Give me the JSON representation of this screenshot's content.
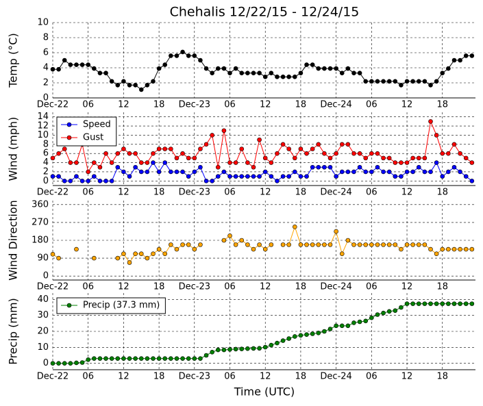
{
  "chart_data": [
    {
      "type": "line",
      "title": "Chehalis 12/22/15 - 12/24/15",
      "ylabel": "Temp (°C)",
      "x": [
        0,
        1,
        2,
        3,
        4,
        5,
        6,
        7,
        8,
        9,
        10,
        11,
        12,
        13,
        14,
        15,
        16,
        17,
        18,
        19,
        20,
        21,
        22,
        23,
        24,
        25,
        26,
        27,
        28,
        29,
        30,
        31,
        32,
        33,
        34,
        35,
        36,
        37,
        38,
        39,
        40,
        41,
        42,
        43,
        44,
        45,
        46,
        47,
        48,
        49,
        50,
        51,
        52,
        53,
        54,
        55,
        56,
        57,
        58,
        59,
        60,
        61,
        62,
        63,
        64,
        65,
        66,
        67,
        68,
        69,
        70,
        71
      ],
      "xlim": [
        0,
        71.6
      ],
      "xticks": [
        {
          "value": 0,
          "label": "Dec-22"
        },
        {
          "value": 6,
          "label": "06"
        },
        {
          "value": 12,
          "label": "12"
        },
        {
          "value": 18,
          "label": "18"
        },
        {
          "value": 24,
          "label": "Dec-23"
        },
        {
          "value": 30,
          "label": "06"
        },
        {
          "value": 36,
          "label": "12"
        },
        {
          "value": 42,
          "label": "18"
        },
        {
          "value": 48,
          "label": "Dec-24"
        },
        {
          "value": 54,
          "label": "06"
        },
        {
          "value": 60,
          "label": "12"
        },
        {
          "value": 66,
          "label": "18"
        }
      ],
      "ylim": [
        0,
        10
      ],
      "yticks": [
        0,
        2,
        4,
        6,
        8,
        10
      ],
      "grid": true,
      "series": [
        {
          "color": "#000000",
          "values": [
            3.8,
            3.8,
            5,
            4.4,
            4.4,
            4.4,
            4.4,
            3.9,
            3.3,
            3.3,
            2.2,
            1.7,
            2.2,
            1.7,
            1.7,
            1.1,
            1.7,
            2.2,
            3.9,
            4.4,
            5.6,
            5.6,
            6.1,
            5.6,
            5.6,
            5,
            3.9,
            3.3,
            3.9,
            3.9,
            3.3,
            3.9,
            3.3,
            3.3,
            3.3,
            3.3,
            2.8,
            3.3,
            2.8,
            2.8,
            2.8,
            2.8,
            3.3,
            4.4,
            4.4,
            3.9,
            3.9,
            3.9,
            3.9,
            3.3,
            3.9,
            3.3,
            3.3,
            2.2,
            2.2,
            2.2,
            2.2,
            2.2,
            2.2,
            1.7,
            2.2,
            2.2,
            2.2,
            2.2,
            1.7,
            2.2,
            3.3,
            3.9,
            5,
            5,
            5.6,
            5.6
          ]
        }
      ]
    },
    {
      "type": "line",
      "ylabel": "Wind (mph)",
      "x": [
        0,
        1,
        2,
        3,
        4,
        5,
        6,
        7,
        8,
        9,
        10,
        11,
        12,
        13,
        14,
        15,
        16,
        17,
        18,
        19,
        20,
        21,
        22,
        23,
        24,
        25,
        26,
        27,
        28,
        29,
        30,
        31,
        32,
        33,
        34,
        35,
        36,
        37,
        38,
        39,
        40,
        41,
        42,
        43,
        44,
        45,
        46,
        47,
        48,
        49,
        50,
        51,
        52,
        53,
        54,
        55,
        56,
        57,
        58,
        59,
        60,
        61,
        62,
        63,
        64,
        65,
        66,
        67,
        68,
        69,
        70,
        71
      ],
      "xlim": [
        0,
        71.6
      ],
      "xticks": [
        {
          "value": 0,
          "label": "Dec-22"
        },
        {
          "value": 6,
          "label": "06"
        },
        {
          "value": 12,
          "label": "12"
        },
        {
          "value": 18,
          "label": "18"
        },
        {
          "value": 24,
          "label": "Dec-23"
        },
        {
          "value": 30,
          "label": "06"
        },
        {
          "value": 36,
          "label": "12"
        },
        {
          "value": 42,
          "label": "18"
        },
        {
          "value": 48,
          "label": "Dec-24"
        },
        {
          "value": 54,
          "label": "06"
        },
        {
          "value": 60,
          "label": "12"
        },
        {
          "value": 66,
          "label": "18"
        }
      ],
      "ylim": [
        -1,
        15
      ],
      "yticks": [
        0,
        2,
        4,
        6,
        8,
        10,
        12,
        14
      ],
      "grid": true,
      "legend": "upper left",
      "series": [
        {
          "name": "Speed",
          "color": "#0000ff",
          "values": [
            1,
            1,
            0,
            0,
            1,
            0,
            0,
            1,
            0,
            0,
            0,
            3,
            2,
            1,
            3,
            2,
            2,
            4,
            2,
            4,
            2,
            2,
            2,
            1,
            2,
            3,
            0,
            0,
            1,
            2,
            1,
            1,
            1,
            1,
            1,
            1,
            2,
            1,
            0,
            1,
            1,
            2,
            1,
            1,
            3,
            3,
            3,
            3,
            1,
            2,
            2,
            2,
            3,
            2,
            2,
            3,
            2,
            2,
            1,
            1,
            2,
            2,
            3,
            2,
            2,
            4,
            1,
            2,
            3,
            2,
            1,
            0
          ]
        },
        {
          "name": "Gust",
          "color": "#ff0000",
          "values": [
            5,
            6,
            7,
            4,
            4,
            8,
            2,
            4,
            3,
            6,
            4,
            6,
            7,
            6,
            6,
            4,
            4,
            6,
            7,
            7,
            7,
            5,
            6,
            5,
            5,
            7,
            8,
            10,
            3,
            11,
            4,
            4,
            7,
            4,
            3,
            9,
            5,
            4,
            6,
            8,
            7,
            5,
            7,
            6,
            7,
            8,
            6,
            5,
            6,
            8,
            8,
            6,
            6,
            5,
            6,
            6,
            5,
            5,
            4,
            4,
            4,
            5,
            5,
            5,
            13,
            10,
            6,
            6,
            8,
            6,
            5,
            4
          ]
        }
      ]
    },
    {
      "type": "line",
      "ylabel": "Wind Direction",
      "x": [
        0,
        1,
        2,
        3,
        4,
        5,
        6,
        7,
        8,
        9,
        10,
        11,
        12,
        13,
        14,
        15,
        16,
        17,
        18,
        19,
        20,
        21,
        22,
        23,
        24,
        25,
        26,
        27,
        28,
        29,
        30,
        31,
        32,
        33,
        34,
        35,
        36,
        37,
        38,
        39,
        40,
        41,
        42,
        43,
        44,
        45,
        46,
        47,
        48,
        49,
        50,
        51,
        52,
        53,
        54,
        55,
        56,
        57,
        58,
        59,
        60,
        61,
        62,
        63,
        64,
        65,
        66,
        67,
        68,
        69,
        70,
        71
      ],
      "xlim": [
        0,
        71.6
      ],
      "xticks": [
        {
          "value": 0,
          "label": "Dec-22"
        },
        {
          "value": 6,
          "label": "06"
        },
        {
          "value": 12,
          "label": "12"
        },
        {
          "value": 18,
          "label": "18"
        },
        {
          "value": 24,
          "label": "Dec-23"
        },
        {
          "value": 30,
          "label": "06"
        },
        {
          "value": 36,
          "label": "12"
        },
        {
          "value": 42,
          "label": "18"
        },
        {
          "value": 48,
          "label": "Dec-24"
        },
        {
          "value": 54,
          "label": "06"
        },
        {
          "value": 60,
          "label": "12"
        },
        {
          "value": 66,
          "label": "18"
        }
      ],
      "ylim": [
        -20,
        380
      ],
      "yticks": [
        0,
        90,
        180,
        270,
        360
      ],
      "grid": true,
      "series": [
        {
          "color": "#ffa500",
          "values": [
            110,
            90,
            null,
            null,
            135,
            null,
            null,
            90,
            null,
            null,
            null,
            90,
            112,
            68,
            112,
            112,
            90,
            112,
            135,
            112,
            158,
            135,
            158,
            158,
            135,
            158,
            null,
            null,
            null,
            180,
            203,
            158,
            180,
            158,
            135,
            158,
            135,
            158,
            null,
            158,
            158,
            248,
            158,
            158,
            158,
            158,
            158,
            158,
            225,
            112,
            180,
            158,
            158,
            158,
            158,
            158,
            158,
            158,
            158,
            135,
            158,
            158,
            158,
            158,
            135,
            112,
            135,
            135,
            135,
            135,
            135,
            135
          ]
        }
      ]
    },
    {
      "type": "line",
      "ylabel": "Precip (mm)",
      "xlabel": "Time (UTC)",
      "x": [
        0,
        1,
        2,
        3,
        4,
        5,
        6,
        7,
        8,
        9,
        10,
        11,
        12,
        13,
        14,
        15,
        16,
        17,
        18,
        19,
        20,
        21,
        22,
        23,
        24,
        25,
        26,
        27,
        28,
        29,
        30,
        31,
        32,
        33,
        34,
        35,
        36,
        37,
        38,
        39,
        40,
        41,
        42,
        43,
        44,
        45,
        46,
        47,
        48,
        49,
        50,
        51,
        52,
        53,
        54,
        55,
        56,
        57,
        58,
        59,
        60,
        61,
        62,
        63,
        64,
        65,
        66,
        67,
        68,
        69,
        70,
        71
      ],
      "xlim": [
        0,
        71.6
      ],
      "xticks": [
        {
          "value": 0,
          "label": "Dec-22"
        },
        {
          "value": 6,
          "label": "06"
        },
        {
          "value": 12,
          "label": "12"
        },
        {
          "value": 18,
          "label": "18"
        },
        {
          "value": 24,
          "label": "Dec-23"
        },
        {
          "value": 30,
          "label": "06"
        },
        {
          "value": 36,
          "label": "12"
        },
        {
          "value": 42,
          "label": "18"
        },
        {
          "value": 48,
          "label": "Dec-24"
        },
        {
          "value": 54,
          "label": "06"
        },
        {
          "value": 60,
          "label": "12"
        },
        {
          "value": 66,
          "label": "18"
        }
      ],
      "ylim": [
        -4,
        44
      ],
      "yticks": [
        0,
        10,
        20,
        30,
        40
      ],
      "grid": true,
      "legend": "upper left",
      "series": [
        {
          "name": "Precip (37.3 mm)",
          "color": "#008000",
          "values": [
            0,
            0,
            0,
            0,
            0.3,
            0.5,
            2.3,
            3,
            3,
            3,
            3,
            3,
            3,
            3,
            3,
            3,
            3,
            3,
            3,
            3,
            3,
            3,
            3,
            3,
            3,
            3,
            5,
            7,
            8.4,
            8.4,
            8.7,
            8.9,
            9,
            9.2,
            9.3,
            9.4,
            10.1,
            11.4,
            12.7,
            14.2,
            15.5,
            16.8,
            17.5,
            18,
            18.5,
            19,
            20,
            21.5,
            23.5,
            23.5,
            23.5,
            25.4,
            26,
            26.5,
            28.5,
            30.5,
            31.5,
            32.5,
            33,
            35,
            37.3,
            37.3,
            37.3,
            37.3,
            37.3,
            37.3,
            37.3,
            37.3,
            37.3,
            37.3,
            37.3,
            37.3
          ]
        }
      ]
    }
  ]
}
